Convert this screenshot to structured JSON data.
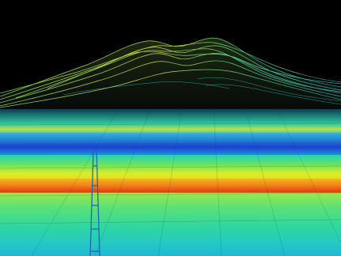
{
  "scene": {
    "kind": "lidar-point-cloud",
    "palette": {
      "sky": "#000000",
      "high": "#e83e12",
      "mid": "#f4d018",
      "green": "#6fe35a",
      "cyan": "#24c9c4",
      "blue": "#1b3fd0"
    }
  }
}
